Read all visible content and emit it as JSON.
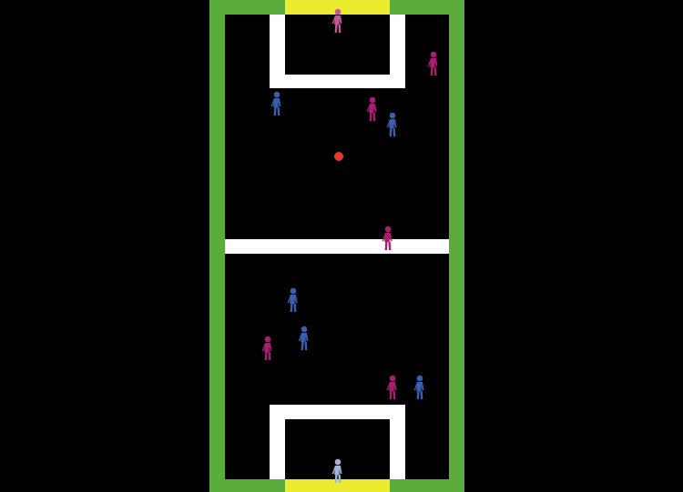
{
  "colors": {
    "background": "#000000",
    "border": "#5aad3a",
    "goal": "#ecec2e",
    "lines": "#ffffff",
    "team_blue": "#3a5fae",
    "team_magenta": "#a81e70",
    "goalie_top": "#c25a98",
    "goalie_bottom": "#a4b4d4",
    "ball": "#e23a2a"
  },
  "players": [
    {
      "team": "magenta",
      "role": "goalkeeper"
    },
    {
      "team": "magenta",
      "role": "field"
    },
    {
      "team": "blue",
      "role": "field"
    },
    {
      "team": "magenta",
      "role": "field"
    },
    {
      "team": "blue",
      "role": "field"
    },
    {
      "team": "magenta",
      "role": "field"
    },
    {
      "team": "blue",
      "role": "field"
    },
    {
      "team": "blue",
      "role": "field"
    },
    {
      "team": "magenta",
      "role": "field"
    },
    {
      "team": "magenta",
      "role": "field"
    },
    {
      "team": "blue",
      "role": "field"
    },
    {
      "team": "blue",
      "role": "goalkeeper"
    }
  ]
}
